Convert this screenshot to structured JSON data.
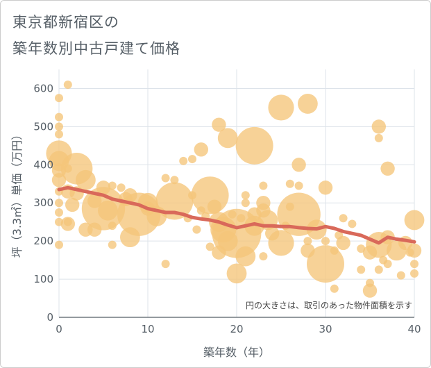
{
  "title_line1": "東京都新宿区の",
  "title_line2": "築年数別中古戸建て価格",
  "chart_data": {
    "type": "scatter",
    "title": "東京都新宿区の築年数別中古戸建て価格",
    "xlabel": "築年数（年）",
    "ylabel": "坪（3.3㎡）単価（万円）",
    "xlim": [
      0,
      40
    ],
    "ylim": [
      0,
      650
    ],
    "xticks": [
      0,
      10,
      20,
      30,
      40
    ],
    "yticks": [
      0,
      100,
      200,
      300,
      400,
      500,
      600
    ],
    "grid": true,
    "note": "円の大きさは、取引のあった物件面積を示す",
    "colors": {
      "bubble": "#f5c57a",
      "trend": "#d9695a",
      "grid": "#dde3ea",
      "axis": "#555e66"
    },
    "bubbles": [
      {
        "x": 0.0,
        "y": 575,
        "s": 1
      },
      {
        "x": 0.0,
        "y": 525,
        "s": 1
      },
      {
        "x": 0.0,
        "y": 500,
        "s": 1
      },
      {
        "x": 0.0,
        "y": 480,
        "s": 1
      },
      {
        "x": 0.0,
        "y": 430,
        "s": 4
      },
      {
        "x": 0.0,
        "y": 410,
        "s": 3
      },
      {
        "x": 0.0,
        "y": 385,
        "s": 2
      },
      {
        "x": 0.0,
        "y": 360,
        "s": 2
      },
      {
        "x": 0.0,
        "y": 330,
        "s": 1
      },
      {
        "x": 0.0,
        "y": 300,
        "s": 1
      },
      {
        "x": 0.0,
        "y": 275,
        "s": 1
      },
      {
        "x": 0.0,
        "y": 250,
        "s": 1
      },
      {
        "x": 0.0,
        "y": 190,
        "s": 1
      },
      {
        "x": 1.0,
        "y": 610,
        "s": 1
      },
      {
        "x": 1.0,
        "y": 390,
        "s": 1
      },
      {
        "x": 1.0,
        "y": 330,
        "s": 2
      },
      {
        "x": 1.0,
        "y": 250,
        "s": 1
      },
      {
        "x": 1.0,
        "y": 245,
        "s": 2
      },
      {
        "x": 1.5,
        "y": 295,
        "s": 2
      },
      {
        "x": 2.0,
        "y": 390,
        "s": 5
      },
      {
        "x": 2.0,
        "y": 325,
        "s": 2
      },
      {
        "x": 3.0,
        "y": 360,
        "s": 3
      },
      {
        "x": 3.0,
        "y": 230,
        "s": 2
      },
      {
        "x": 4.0,
        "y": 305,
        "s": 2
      },
      {
        "x": 4.0,
        "y": 230,
        "s": 2
      },
      {
        "x": 5.0,
        "y": 340,
        "s": 2
      },
      {
        "x": 5.0,
        "y": 285,
        "s": 7
      },
      {
        "x": 5.5,
        "y": 280,
        "s": 3
      },
      {
        "x": 6.0,
        "y": 345,
        "s": 1
      },
      {
        "x": 6.0,
        "y": 240,
        "s": 1
      },
      {
        "x": 6.0,
        "y": 190,
        "s": 1
      },
      {
        "x": 7.0,
        "y": 340,
        "s": 1
      },
      {
        "x": 7.5,
        "y": 310,
        "s": 2
      },
      {
        "x": 8.0,
        "y": 320,
        "s": 2
      },
      {
        "x": 8.0,
        "y": 210,
        "s": 3
      },
      {
        "x": 9.0,
        "y": 270,
        "s": 7
      },
      {
        "x": 10.0,
        "y": 300,
        "s": 3
      },
      {
        "x": 10.0,
        "y": 285,
        "s": 2
      },
      {
        "x": 11.0,
        "y": 265,
        "s": 3
      },
      {
        "x": 12.0,
        "y": 365,
        "s": 1
      },
      {
        "x": 12.0,
        "y": 140,
        "s": 1
      },
      {
        "x": 13.0,
        "y": 305,
        "s": 6
      },
      {
        "x": 13.0,
        "y": 360,
        "s": 1
      },
      {
        "x": 14.0,
        "y": 410,
        "s": 1
      },
      {
        "x": 14.5,
        "y": 260,
        "s": 1
      },
      {
        "x": 15.0,
        "y": 320,
        "s": 1
      },
      {
        "x": 15.0,
        "y": 415,
        "s": 1
      },
      {
        "x": 15.5,
        "y": 230,
        "s": 1
      },
      {
        "x": 16.0,
        "y": 440,
        "s": 2
      },
      {
        "x": 16.0,
        "y": 280,
        "s": 1
      },
      {
        "x": 16.5,
        "y": 265,
        "s": 1
      },
      {
        "x": 17.0,
        "y": 320,
        "s": 6
      },
      {
        "x": 17.0,
        "y": 185,
        "s": 1
      },
      {
        "x": 17.5,
        "y": 290,
        "s": 2
      },
      {
        "x": 18.0,
        "y": 505,
        "s": 2
      },
      {
        "x": 18.0,
        "y": 250,
        "s": 3
      },
      {
        "x": 18.0,
        "y": 170,
        "s": 2
      },
      {
        "x": 18.5,
        "y": 230,
        "s": 4
      },
      {
        "x": 19.0,
        "y": 470,
        "s": 3
      },
      {
        "x": 19.0,
        "y": 200,
        "s": 3
      },
      {
        "x": 19.5,
        "y": 270,
        "s": 1
      },
      {
        "x": 20.0,
        "y": 220,
        "s": 8
      },
      {
        "x": 20.0,
        "y": 115,
        "s": 3
      },
      {
        "x": 20.5,
        "y": 260,
        "s": 1
      },
      {
        "x": 21.0,
        "y": 320,
        "s": 1
      },
      {
        "x": 21.0,
        "y": 300,
        "s": 1
      },
      {
        "x": 21.0,
        "y": 160,
        "s": 3
      },
      {
        "x": 22.0,
        "y": 450,
        "s": 6
      },
      {
        "x": 22.0,
        "y": 270,
        "s": 2
      },
      {
        "x": 22.0,
        "y": 240,
        "s": 3
      },
      {
        "x": 23.0,
        "y": 345,
        "s": 1
      },
      {
        "x": 23.0,
        "y": 300,
        "s": 2
      },
      {
        "x": 23.0,
        "y": 280,
        "s": 2
      },
      {
        "x": 23.0,
        "y": 160,
        "s": 1
      },
      {
        "x": 23.5,
        "y": 255,
        "s": 3
      },
      {
        "x": 24.0,
        "y": 220,
        "s": 2
      },
      {
        "x": 25.0,
        "y": 550,
        "s": 4
      },
      {
        "x": 25.0,
        "y": 195,
        "s": 4
      },
      {
        "x": 25.5,
        "y": 240,
        "s": 1
      },
      {
        "x": 26.0,
        "y": 350,
        "s": 1
      },
      {
        "x": 26.0,
        "y": 290,
        "s": 1
      },
      {
        "x": 27.0,
        "y": 400,
        "s": 2
      },
      {
        "x": 27.0,
        "y": 345,
        "s": 1
      },
      {
        "x": 27.0,
        "y": 270,
        "s": 7
      },
      {
        "x": 28.0,
        "y": 560,
        "s": 3
      },
      {
        "x": 28.0,
        "y": 200,
        "s": 1
      },
      {
        "x": 28.0,
        "y": 175,
        "s": 2
      },
      {
        "x": 29.0,
        "y": 230,
        "s": 3
      },
      {
        "x": 30.0,
        "y": 340,
        "s": 2
      },
      {
        "x": 30.0,
        "y": 200,
        "s": 1
      },
      {
        "x": 30.0,
        "y": 140,
        "s": 6
      },
      {
        "x": 31.0,
        "y": 175,
        "s": 1
      },
      {
        "x": 31.0,
        "y": 75,
        "s": 1
      },
      {
        "x": 31.5,
        "y": 215,
        "s": 1
      },
      {
        "x": 32.0,
        "y": 260,
        "s": 1
      },
      {
        "x": 32.0,
        "y": 195,
        "s": 2
      },
      {
        "x": 33.0,
        "y": 245,
        "s": 1
      },
      {
        "x": 34.0,
        "y": 180,
        "s": 1
      },
      {
        "x": 34.0,
        "y": 125,
        "s": 1
      },
      {
        "x": 35.0,
        "y": 170,
        "s": 2
      },
      {
        "x": 35.0,
        "y": 90,
        "s": 1
      },
      {
        "x": 35.0,
        "y": 70,
        "s": 2
      },
      {
        "x": 36.0,
        "y": 500,
        "s": 2
      },
      {
        "x": 36.0,
        "y": 470,
        "s": 1
      },
      {
        "x": 36.0,
        "y": 190,
        "s": 4
      },
      {
        "x": 36.0,
        "y": 125,
        "s": 1
      },
      {
        "x": 36.5,
        "y": 150,
        "s": 1
      },
      {
        "x": 37.0,
        "y": 390,
        "s": 2
      },
      {
        "x": 37.0,
        "y": 210,
        "s": 2
      },
      {
        "x": 37.0,
        "y": 140,
        "s": 1
      },
      {
        "x": 38.0,
        "y": 175,
        "s": 3
      },
      {
        "x": 38.5,
        "y": 110,
        "s": 1
      },
      {
        "x": 39.0,
        "y": 195,
        "s": 2
      },
      {
        "x": 39.5,
        "y": 170,
        "s": 1
      },
      {
        "x": 40.0,
        "y": 255,
        "s": 3
      },
      {
        "x": 40.0,
        "y": 175,
        "s": 2
      },
      {
        "x": 40.0,
        "y": 140,
        "s": 1
      },
      {
        "x": 40.0,
        "y": 115,
        "s": 1
      }
    ],
    "series": [
      {
        "name": "trend",
        "x": [
          0,
          1,
          2,
          3,
          4,
          5,
          6,
          7,
          8,
          9,
          10,
          11,
          12,
          13,
          14,
          15,
          16,
          17,
          18,
          19,
          20,
          21,
          22,
          23,
          24,
          25,
          26,
          27,
          28,
          29,
          30,
          31,
          32,
          33,
          34,
          35,
          36,
          37,
          38,
          39,
          40
        ],
        "y": [
          335,
          340,
          335,
          330,
          325,
          320,
          310,
          305,
          300,
          295,
          285,
          280,
          275,
          275,
          270,
          262,
          258,
          255,
          250,
          242,
          235,
          240,
          245,
          240,
          240,
          238,
          238,
          235,
          233,
          232,
          238,
          233,
          225,
          220,
          215,
          205,
          195,
          210,
          205,
          202,
          198
        ]
      }
    ]
  }
}
